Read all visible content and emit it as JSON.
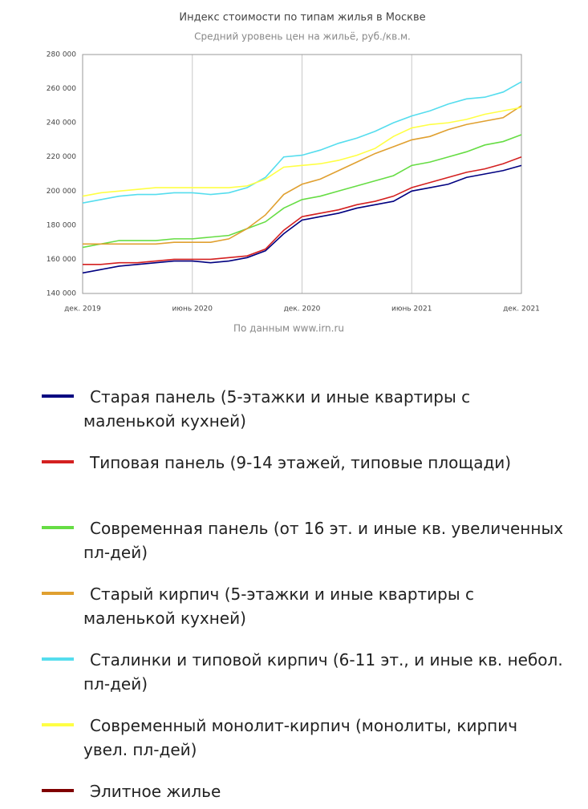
{
  "chart_data": {
    "type": "line",
    "title": "Индекс стоимости по типам жилья в Москве",
    "subtitle": "Средний уровень цен на жильё, руб./кв.м.",
    "source": "По данным www.irn.ru",
    "categories": [
      "дек. 2019",
      null,
      null,
      null,
      null,
      null,
      "июнь 2020",
      null,
      null,
      null,
      null,
      null,
      "дек. 2020",
      null,
      null,
      null,
      null,
      null,
      "июнь 2021",
      null,
      null,
      null,
      null,
      null,
      "дек. 2021"
    ],
    "ylim": [
      140000,
      280000
    ],
    "yticks": [
      {
        "value": 140000,
        "label": "140 000"
      },
      {
        "value": 160000,
        "label": "160 000"
      },
      {
        "value": 180000,
        "label": "180 000"
      },
      {
        "value": 200000,
        "label": "200 000"
      },
      {
        "value": 220000,
        "label": "220 000"
      },
      {
        "value": 240000,
        "label": "240 000"
      },
      {
        "value": 260000,
        "label": "260 000"
      },
      {
        "value": 280000,
        "label": "280 000"
      }
    ],
    "grid": true,
    "series": [
      {
        "name": "Старая панель (5-этажки и иные квартиры с маленькой кухней)",
        "color": "#000080",
        "values": [
          152000,
          154000,
          156000,
          157000,
          158000,
          159000,
          159000,
          158000,
          159000,
          161000,
          165000,
          175000,
          183000,
          185000,
          187000,
          190000,
          192000,
          194000,
          200000,
          202000,
          204000,
          208000,
          210000,
          212000,
          215000
        ]
      },
      {
        "name": "Типовая панель (9-14 этажей, типовые площади)",
        "color": "#d42020",
        "values": [
          157000,
          157000,
          158000,
          158000,
          159000,
          160000,
          160000,
          160000,
          161000,
          162000,
          166000,
          177000,
          185000,
          187000,
          189000,
          192000,
          194000,
          197000,
          202000,
          205000,
          208000,
          211000,
          213000,
          216000,
          220000
        ]
      },
      {
        "name": "Современная панель (от 16 эт. и иные кв. увеличенных пл-дей)",
        "color": "#66dd44",
        "values": [
          167000,
          169000,
          171000,
          171000,
          171000,
          172000,
          172000,
          173000,
          174000,
          178000,
          182000,
          190000,
          195000,
          197000,
          200000,
          203000,
          206000,
          209000,
          215000,
          217000,
          220000,
          223000,
          227000,
          229000,
          233000
        ]
      },
      {
        "name": "Старый кирпич (5-этажки и иные квартиры с маленькой кухней)",
        "color": "#e0a030",
        "values": [
          169000,
          169000,
          169000,
          169000,
          169000,
          170000,
          170000,
          170000,
          172000,
          178000,
          186000,
          198000,
          204000,
          207000,
          212000,
          217000,
          222000,
          226000,
          230000,
          232000,
          236000,
          239000,
          241000,
          243000,
          250000
        ]
      },
      {
        "name": "Сталинки и типовой кирпич (6-11 эт., и иные кв. небол. пл-дей)",
        "color": "#55ddee",
        "values": [
          193000,
          195000,
          197000,
          198000,
          198000,
          199000,
          199000,
          198000,
          199000,
          202000,
          208000,
          220000,
          221000,
          224000,
          228000,
          231000,
          235000,
          240000,
          244000,
          247000,
          251000,
          254000,
          255000,
          258000,
          264000
        ]
      },
      {
        "name": "Современный монолит-кирпич (монолиты, кирпич увел. пл-дей)",
        "color": "#ffff44",
        "values": [
          197000,
          199000,
          200000,
          201000,
          202000,
          202000,
          202000,
          202000,
          202000,
          203000,
          207000,
          214000,
          215000,
          216000,
          218000,
          221000,
          225000,
          232000,
          237000,
          239000,
          240000,
          242000,
          245000,
          247000,
          249000
        ]
      },
      {
        "name": "Элитное жилье",
        "color": "#800000",
        "values": [
          null,
          null,
          null,
          null,
          null,
          null,
          null,
          null,
          null,
          null,
          null,
          null,
          null,
          null,
          null,
          null,
          null,
          null,
          null,
          null,
          null,
          null,
          null,
          null,
          null
        ]
      }
    ]
  }
}
